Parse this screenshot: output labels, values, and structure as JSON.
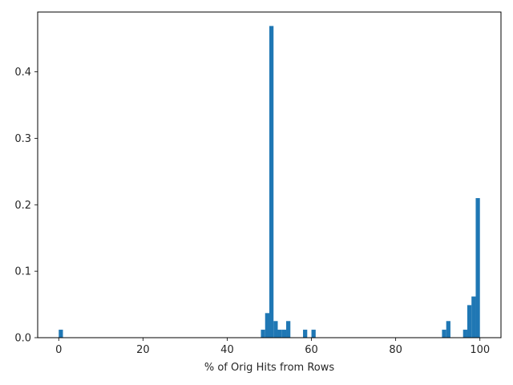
{
  "chart_data": {
    "type": "bar",
    "title": "",
    "xlabel": "% of Orig Hits from Rows",
    "ylabel": "",
    "xlim": [
      -5,
      105
    ],
    "ylim": [
      0,
      0.49
    ],
    "grid": false,
    "bin_width": 1,
    "bar_color": "#1f77b4",
    "x_ticks": [
      0,
      20,
      40,
      60,
      80,
      100
    ],
    "y_ticks": [
      0.0,
      0.1,
      0.2,
      0.3,
      0.4
    ],
    "x_tick_labels": [
      "0",
      "20",
      "40",
      "60",
      "80",
      "100"
    ],
    "y_tick_labels": [
      "0.0",
      "0.1",
      "0.2",
      "0.3",
      "0.4"
    ],
    "bins": [
      {
        "x": 0,
        "value": 0.012
      },
      {
        "x": 48,
        "value": 0.012
      },
      {
        "x": 49,
        "value": 0.037
      },
      {
        "x": 50,
        "value": 0.469
      },
      {
        "x": 51,
        "value": 0.025
      },
      {
        "x": 52,
        "value": 0.012
      },
      {
        "x": 53,
        "value": 0.012
      },
      {
        "x": 54,
        "value": 0.025
      },
      {
        "x": 58,
        "value": 0.012
      },
      {
        "x": 60,
        "value": 0.012
      },
      {
        "x": 91,
        "value": 0.012
      },
      {
        "x": 92,
        "value": 0.025
      },
      {
        "x": 96,
        "value": 0.012
      },
      {
        "x": 97,
        "value": 0.049
      },
      {
        "x": 98,
        "value": 0.062
      },
      {
        "x": 99,
        "value": 0.21
      }
    ]
  }
}
